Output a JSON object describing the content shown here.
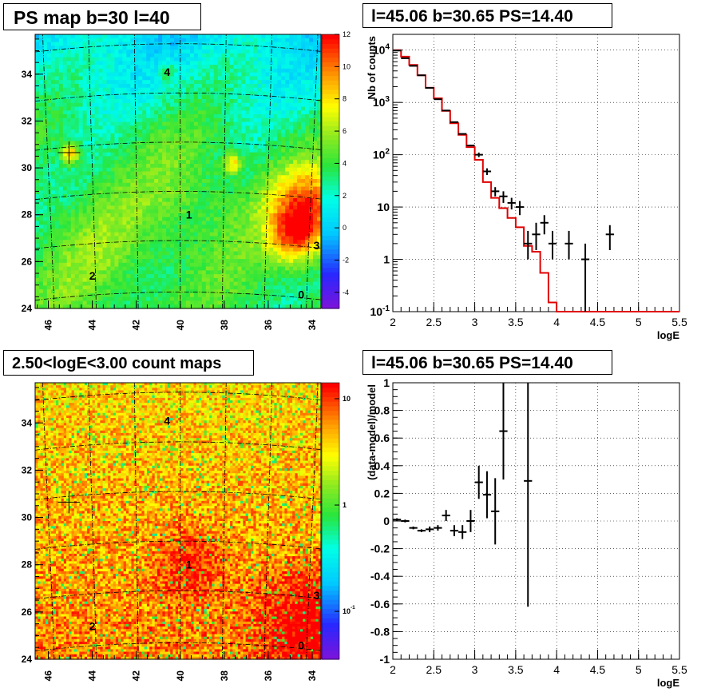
{
  "panels": {
    "ps_map_title": "PS map b=30 l=40",
    "spectrum_title": "l=45.06 b=30.65 PS=14.40",
    "count_map_title": "2.50<logE<3.00 count maps",
    "residual_title": "l=45.06 b=30.65 PS=14.40"
  },
  "chart_data": [
    {
      "type": "heatmap",
      "title": "PS map b=30 l=40",
      "xlabel": "",
      "ylabel": "",
      "xlim": [
        46.6,
        33.6
      ],
      "ylim": [
        24,
        35.7
      ],
      "x_ticks": [
        "46",
        "44",
        "42",
        "40",
        "38",
        "36",
        "34"
      ],
      "y_ticks": [
        "24",
        "26",
        "28",
        "30",
        "32",
        "34"
      ],
      "colorbar_ticks": [
        "-4",
        "-2",
        "0",
        "2",
        "4",
        "6",
        "8",
        "10",
        "12"
      ],
      "colorbar_range": [
        -5,
        12
      ],
      "markers": [
        {
          "label": "0",
          "l": 34.5,
          "b": 24.6
        },
        {
          "label": "1",
          "l": 39.6,
          "b": 28.0
        },
        {
          "label": "2",
          "l": 44.0,
          "b": 25.4
        },
        {
          "label": "3",
          "l": 33.8,
          "b": 26.7
        },
        {
          "label": "4",
          "l": 40.6,
          "b": 34.1
        }
      ],
      "cross": {
        "l": 45.06,
        "b": 30.65
      },
      "grid": true
    },
    {
      "type": "line",
      "title": "l=45.06 b=30.65 PS=14.40",
      "xlabel": "logE",
      "ylabel": "Nb of counts",
      "xlim": [
        2,
        5.5
      ],
      "ylim": [
        0.1,
        20000
      ],
      "yscale": "log",
      "x_ticks": [
        "2",
        "2.5",
        "3",
        "3.5",
        "4",
        "4.5",
        "5",
        "5.5"
      ],
      "y_ticks": [
        "10^-1",
        "1",
        "10",
        "10^2",
        "10^3",
        "10^4"
      ],
      "grid": true,
      "series": [
        {
          "color": "#e00000",
          "type": "step",
          "bin_width": 0.1,
          "x": [
            2.0,
            2.1,
            2.2,
            2.3,
            2.4,
            2.5,
            2.6,
            2.7,
            2.8,
            2.9,
            3.0,
            3.1,
            3.2,
            3.3,
            3.4,
            3.5,
            3.6,
            3.7,
            3.8,
            3.9,
            4.0,
            4.1,
            4.2,
            4.3,
            4.4,
            4.5,
            4.6,
            4.7,
            4.8,
            4.9,
            5.0,
            5.1,
            5.2,
            5.3,
            5.4
          ],
          "y": [
            10000,
            7500,
            5200,
            3300,
            1900,
            1200,
            690,
            400,
            240,
            140,
            80,
            30,
            15,
            9.5,
            6.2,
            4.1,
            1.8,
            1.4,
            0.55,
            0.15,
            0.1,
            0.1,
            0.1,
            0.1,
            0.1,
            0.1,
            0.1,
            0.1,
            0.1,
            0.1,
            0.1,
            0.1,
            0.1,
            0.1,
            0.1
          ]
        },
        {
          "color": "#000000",
          "type": "errorbar",
          "x": [
            2.05,
            2.15,
            2.25,
            2.35,
            2.45,
            2.55,
            2.65,
            2.75,
            2.85,
            2.95,
            3.05,
            3.15,
            3.25,
            3.35,
            3.45,
            3.55,
            3.65,
            3.75,
            3.85,
            3.95,
            4.15,
            4.35,
            4.65
          ],
          "y": [
            9800,
            7000,
            5000,
            3300,
            1900,
            1150,
            700,
            420,
            250,
            150,
            100,
            48,
            20,
            16,
            12,
            10,
            2,
            3,
            5,
            2,
            2,
            1,
            3
          ],
          "ylo": [
            9650,
            6900,
            4900,
            3250,
            1860,
            1120,
            680,
            410,
            245,
            145,
            90,
            41,
            16,
            12,
            9,
            7,
            1,
            1.5,
            3,
            1,
            1,
            0.1,
            1.5
          ],
          "yhi": [
            9950,
            7100,
            5100,
            3350,
            1940,
            1180,
            720,
            430,
            255,
            155,
            110,
            55,
            24,
            20,
            15,
            13,
            3.5,
            5,
            7,
            3.5,
            3.5,
            2,
            4.5
          ]
        }
      ]
    },
    {
      "type": "heatmap",
      "title": "2.50<logE<3.00 count maps",
      "xlabel": "",
      "ylabel": "",
      "xlim": [
        46.6,
        33.6
      ],
      "ylim": [
        24,
        35.7
      ],
      "x_ticks": [
        "46",
        "44",
        "42",
        "40",
        "38",
        "36",
        "34"
      ],
      "y_ticks": [
        "24",
        "26",
        "28",
        "30",
        "32",
        "34"
      ],
      "colorbar_ticks": [
        "10^-1",
        "1",
        "10"
      ],
      "colorbar_scale": "log",
      "markers": [
        {
          "label": "0",
          "l": 34.5,
          "b": 24.6
        },
        {
          "label": "1",
          "l": 39.6,
          "b": 28.0
        },
        {
          "label": "2",
          "l": 44.0,
          "b": 25.4
        },
        {
          "label": "3",
          "l": 33.8,
          "b": 26.7
        },
        {
          "label": "4",
          "l": 40.6,
          "b": 34.1
        }
      ],
      "cross": {
        "l": 45.06,
        "b": 30.65
      },
      "grid": true
    },
    {
      "type": "scatter",
      "title": "l=45.06 b=30.65 PS=14.40",
      "xlabel": "logE",
      "ylabel": "(data-model)/model",
      "xlim": [
        2,
        5.5
      ],
      "ylim": [
        -1,
        1
      ],
      "x_ticks": [
        "2",
        "2.5",
        "3",
        "3.5",
        "4",
        "4.5",
        "5",
        "5.5"
      ],
      "y_ticks": [
        "-1",
        "-0.8",
        "-0.6",
        "-0.4",
        "-0.2",
        "0",
        "0.2",
        "0.4",
        "0.6",
        "0.8",
        "1"
      ],
      "grid": true,
      "series": [
        {
          "color": "#000000",
          "type": "errorbar",
          "x": [
            2.05,
            2.15,
            2.25,
            2.35,
            2.45,
            2.55,
            2.65,
            2.75,
            2.85,
            2.95,
            3.05,
            3.15,
            3.25,
            3.35,
            3.65
          ],
          "y": [
            0.01,
            0.0,
            -0.05,
            -0.07,
            -0.06,
            -0.05,
            0.04,
            -0.07,
            -0.08,
            0.0,
            0.28,
            0.19,
            0.07,
            0.65,
            0.29
          ],
          "ylo": [
            0.0,
            -0.01,
            -0.06,
            -0.08,
            -0.08,
            -0.07,
            0.0,
            -0.11,
            -0.13,
            -0.08,
            0.16,
            0.02,
            -0.17,
            0.3,
            -0.62
          ],
          "yhi": [
            0.02,
            0.01,
            -0.04,
            -0.06,
            -0.04,
            -0.03,
            0.08,
            -0.03,
            -0.03,
            0.08,
            0.4,
            0.36,
            0.31,
            1.0,
            1.0
          ]
        }
      ]
    }
  ]
}
